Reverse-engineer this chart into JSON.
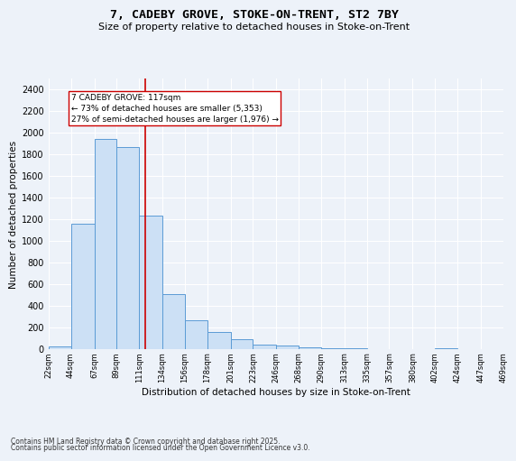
{
  "title1": "7, CADEBY GROVE, STOKE-ON-TRENT, ST2 7BY",
  "title2": "Size of property relative to detached houses in Stoke-on-Trent",
  "xlabel": "Distribution of detached houses by size in Stoke-on-Trent",
  "ylabel": "Number of detached properties",
  "bin_edges": [
    22,
    44,
    67,
    89,
    111,
    134,
    156,
    178,
    201,
    223,
    246,
    268,
    290,
    313,
    335,
    357,
    380,
    402,
    424,
    447,
    469
  ],
  "bin_labels": [
    "22sqm",
    "44sqm",
    "67sqm",
    "89sqm",
    "111sqm",
    "134sqm",
    "156sqm",
    "178sqm",
    "201sqm",
    "223sqm",
    "246sqm",
    "268sqm",
    "290sqm",
    "313sqm",
    "335sqm",
    "357sqm",
    "380sqm",
    "402sqm",
    "424sqm",
    "447sqm",
    "469sqm"
  ],
  "counts": [
    25,
    1160,
    1940,
    1870,
    1230,
    510,
    270,
    155,
    90,
    45,
    35,
    20,
    10,
    5,
    3,
    2,
    2,
    8,
    2,
    1
  ],
  "bar_color": "#cce0f5",
  "bar_edge_color": "#5b9bd5",
  "property_size": 117,
  "red_line_color": "#cc0000",
  "annotation_text": "7 CADEBY GROVE: 117sqm\n← 73% of detached houses are smaller (5,353)\n27% of semi-detached houses are larger (1,976) →",
  "annotation_box_color": "white",
  "annotation_box_edge": "#cc0000",
  "ylim": [
    0,
    2500
  ],
  "yticks": [
    0,
    200,
    400,
    600,
    800,
    1000,
    1200,
    1400,
    1600,
    1800,
    2000,
    2200,
    2400
  ],
  "background_color": "#edf2f9",
  "grid_color": "#ffffff",
  "footer1": "Contains HM Land Registry data © Crown copyright and database right 2025.",
  "footer2": "Contains public sector information licensed under the Open Government Licence v3.0."
}
